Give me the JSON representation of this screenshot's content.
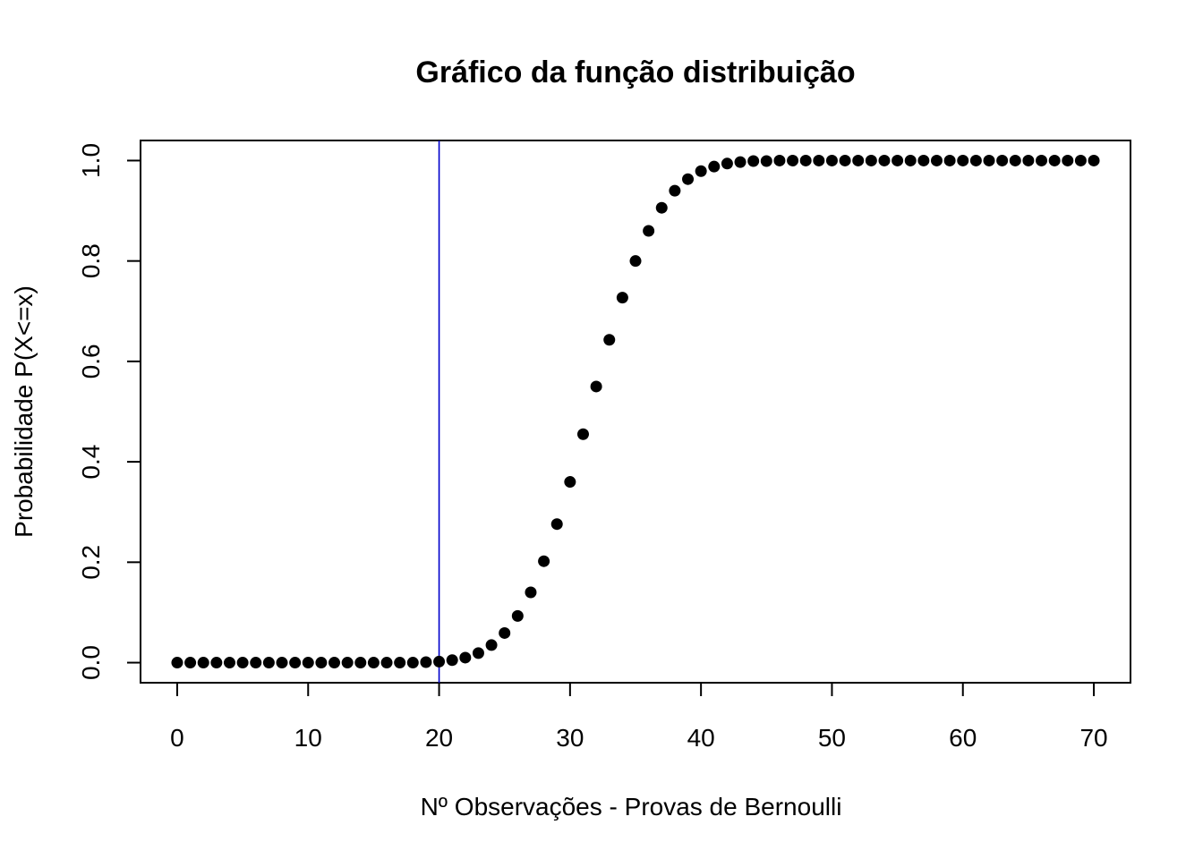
{
  "chart_data": {
    "type": "scatter",
    "title": "Gráfico da função distribuição",
    "xlabel": "Nº Observações - Provas de Bernoulli",
    "ylabel": "Probabilidade P(X<=x)",
    "xlim": [
      -2.8,
      72.8
    ],
    "ylim": [
      -0.04,
      1.04
    ],
    "xticks": [
      0,
      10,
      20,
      30,
      40,
      50,
      60,
      70
    ],
    "yticks": [
      0.0,
      0.2,
      0.4,
      0.6,
      0.8,
      1.0
    ],
    "xtick_labels": [
      "0",
      "10",
      "20",
      "30",
      "40",
      "50",
      "60",
      "70"
    ],
    "ytick_labels": [
      "0.0",
      "0.2",
      "0.4",
      "0.6",
      "0.8",
      "1.0"
    ],
    "grid": false,
    "vline": {
      "x": 20,
      "color": "#0000cc"
    },
    "point_color": "#000000",
    "x": [
      0,
      1,
      2,
      3,
      4,
      5,
      6,
      7,
      8,
      9,
      10,
      11,
      12,
      13,
      14,
      15,
      16,
      17,
      18,
      19,
      20,
      21,
      22,
      23,
      24,
      25,
      26,
      27,
      28,
      29,
      30,
      31,
      32,
      33,
      34,
      35,
      36,
      37,
      38,
      39,
      40,
      41,
      42,
      43,
      44,
      45,
      46,
      47,
      48,
      49,
      50,
      51,
      52,
      53,
      54,
      55,
      56,
      57,
      58,
      59,
      60,
      61,
      62,
      63,
      64,
      65,
      66,
      67,
      68,
      69,
      70
    ],
    "y": [
      0,
      0,
      0,
      0,
      0,
      0,
      0,
      0,
      0,
      0,
      0,
      0,
      0,
      0,
      0,
      0,
      0,
      0,
      0,
      0.001,
      0.002,
      0.005,
      0.01,
      0.019,
      0.035,
      0.059,
      0.093,
      0.14,
      0.202,
      0.276,
      0.36,
      0.455,
      0.55,
      0.643,
      0.727,
      0.8,
      0.86,
      0.906,
      0.94,
      0.963,
      0.979,
      0.988,
      0.994,
      0.997,
      0.999,
      0.999,
      1,
      1,
      1,
      1,
      1,
      1,
      1,
      1,
      1,
      1,
      1,
      1,
      1,
      1,
      1,
      1,
      1,
      1,
      1,
      1,
      1,
      1,
      1,
      1,
      1
    ]
  }
}
